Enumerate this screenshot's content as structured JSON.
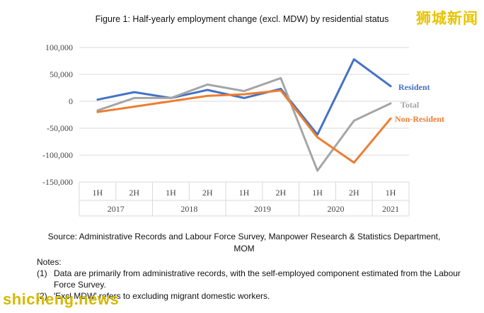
{
  "title": "Figure 1: Half-yearly employment change (excl. MDW) by residential status",
  "watermark_cn": "狮城新闻",
  "watermark_en": "shicheng.news",
  "source": "Source: Administrative Records and Labour Force Survey, Manpower Research & Statistics Department, MOM",
  "notes_heading": "Notes:",
  "notes": [
    {
      "num": "(1)",
      "text": "Data are primarily from administrative records, with the self-employed component estimated from the Labour Force Survey."
    },
    {
      "num": "(2)",
      "text": "'Excl MDW' refers to excluding migrant domestic workers."
    }
  ],
  "chart_data": {
    "type": "line",
    "title": "Figure 1: Half-yearly employment change (excl. MDW) by residential status",
    "x": [
      "1H 2017",
      "2H 2017",
      "1H 2018",
      "2H 2018",
      "1H 2019",
      "2H 2019",
      "1H 2020",
      "2H 2020",
      "1H 2021"
    ],
    "halves": [
      "1H",
      "2H",
      "1H",
      "2H",
      "1H",
      "2H",
      "1H",
      "2H",
      "1H"
    ],
    "years": [
      {
        "label": "2017",
        "span": 2
      },
      {
        "label": "2018",
        "span": 2
      },
      {
        "label": "2019",
        "span": 2
      },
      {
        "label": "2020",
        "span": 2
      },
      {
        "label": "2021",
        "span": 1
      }
    ],
    "ylim": [
      -150000,
      100000
    ],
    "yticks": [
      100000,
      50000,
      0,
      -50000,
      -100000,
      -150000
    ],
    "ytick_labels": [
      "100,000",
      "50,000",
      "0",
      "-50,000",
      "-100,000",
      "-150,000"
    ],
    "grid": true,
    "series": [
      {
        "name": "Resident",
        "color": "#4472c4",
        "values": [
          3000,
          17000,
          6000,
          21000,
          6000,
          23000,
          -62000,
          78000,
          28000
        ]
      },
      {
        "name": "Total",
        "color": "#a5a5a5",
        "values": [
          -17000,
          6000,
          6000,
          31000,
          19000,
          43000,
          -129000,
          -36000,
          -4000
        ]
      },
      {
        "name": "Non-Resident",
        "color": "#ed7d31",
        "values": [
          -20000,
          -10000,
          0,
          10000,
          13000,
          20000,
          -67000,
          -114000,
          -32000
        ]
      }
    ]
  }
}
